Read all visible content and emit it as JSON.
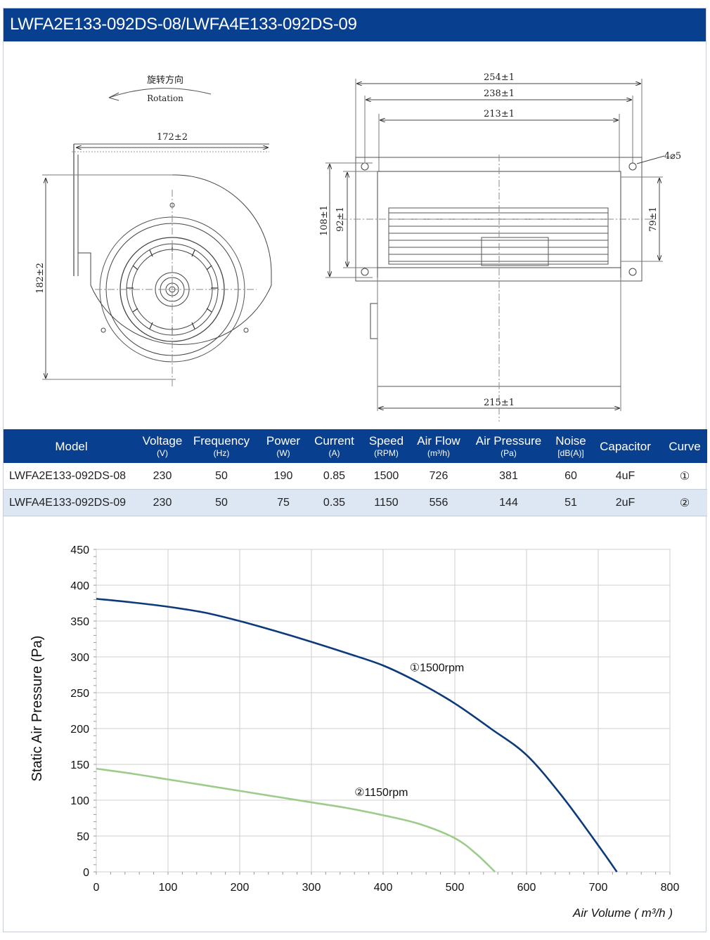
{
  "header": {
    "title": "LWFA2E133-092DS-08/LWFA4E133-092DS-09"
  },
  "drawing": {
    "rotation_cn": "旋转方向",
    "rotation_en": "Rotation",
    "front": {
      "width_dim": "172±2",
      "height_dim": "182±2"
    },
    "side": {
      "dim_254": "254±1",
      "dim_238": "238±1",
      "dim_213": "213±1",
      "hole_dim": "4⌀5",
      "dim_108": "108±1",
      "dim_92": "92±1",
      "dim_79": "79±1",
      "dim_215": "215±1"
    }
  },
  "table": {
    "headers": [
      {
        "label": "Model",
        "unit": ""
      },
      {
        "label": "Voltage",
        "unit": "(V)"
      },
      {
        "label": "Frequency",
        "unit": "(Hz)"
      },
      {
        "label": "Power",
        "unit": "(W)"
      },
      {
        "label": "Current",
        "unit": "(A)"
      },
      {
        "label": "Speed",
        "unit": "(RPM)"
      },
      {
        "label": "Air Flow",
        "unit": "(m³/h)"
      },
      {
        "label": "Air Pressure",
        "unit": "(Pa)"
      },
      {
        "label": "Noise",
        "unit": "[dB(A)]"
      },
      {
        "label": "Capacitor",
        "unit": ""
      },
      {
        "label": "Curve",
        "unit": ""
      }
    ],
    "rows": [
      [
        "LWFA2E133-092DS-08",
        "230",
        "50",
        "190",
        "0.85",
        "1500",
        "726",
        "381",
        "60",
        "4uF",
        "①"
      ],
      [
        "LWFA4E133-092DS-09",
        "230",
        "50",
        "75",
        "0.35",
        "1150",
        "556",
        "144",
        "51",
        "2uF",
        "②"
      ]
    ]
  },
  "chart_data": {
    "type": "line",
    "title": "",
    "xlabel": "Air Volume ( m³/h )",
    "ylabel": "Static Air Pressure  (Pa)",
    "xlim": [
      0,
      800
    ],
    "ylim": [
      0,
      450
    ],
    "xticks": [
      0,
      100,
      200,
      300,
      400,
      500,
      600,
      700,
      800
    ],
    "yticks": [
      0,
      50,
      100,
      150,
      200,
      250,
      300,
      350,
      400,
      450
    ],
    "grid": true,
    "series": [
      {
        "name": "①1500rpm",
        "color": "#0c3a7a",
        "x": [
          0,
          50,
          100,
          150,
          200,
          250,
          300,
          350,
          400,
          450,
          500,
          550,
          600,
          650,
          700,
          726
        ],
        "y": [
          381,
          376,
          370,
          362,
          350,
          336,
          321,
          305,
          288,
          264,
          235,
          200,
          163,
          105,
          37,
          0
        ]
      },
      {
        "name": "②1150rpm",
        "color": "#9dcc8a",
        "x": [
          0,
          50,
          100,
          150,
          200,
          250,
          300,
          350,
          400,
          450,
          500,
          530,
          556
        ],
        "y": [
          144,
          137,
          129,
          121,
          113,
          105,
          97,
          89,
          79,
          67,
          47,
          25,
          0
        ]
      }
    ]
  }
}
